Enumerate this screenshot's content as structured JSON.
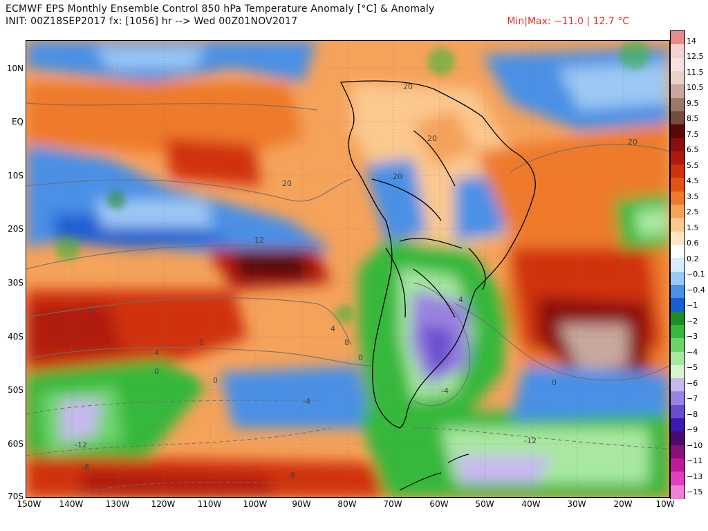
{
  "header": {
    "title_line1": "ECMWF EPS Monthly Ensemble Control 850 hPa Temperature Anomaly [°C] & Anomaly",
    "title_line2": "INIT: 00Z18SEP2017 fx: [1056] hr --> Wed 00Z01NOV2017",
    "minmax": "Min|Max: −11.0 | 12.7 °C"
  },
  "map": {
    "region": "South America / South Pacific / South Atlantic",
    "lat_labels": [
      "10N",
      "EQ",
      "10S",
      "20S",
      "30S",
      "40S",
      "50S",
      "60S",
      "70S"
    ],
    "lon_labels": [
      "150W",
      "140W",
      "130W",
      "120W",
      "110W",
      "100W",
      "90W",
      "80W",
      "70W",
      "60W",
      "50W",
      "40W",
      "30W",
      "20W",
      "10W"
    ],
    "contour_labels": [
      "20",
      "20",
      "20",
      "20",
      "20",
      "12",
      "8",
      "8",
      "4",
      "4",
      "4",
      "0",
      "0",
      "0",
      "0",
      "-4",
      "-4",
      "-8",
      "-8",
      "-12",
      "-12",
      "8"
    ]
  },
  "colorbar": {
    "labels": [
      "14",
      "12.5",
      "11.5",
      "10.5",
      "9.5",
      "8.5",
      "7.5",
      "6.5",
      "5.5",
      "4.5",
      "3.5",
      "2.5",
      "1.5",
      "0.6",
      "0.2",
      "−0.1",
      "−0.4",
      "−1",
      "−2",
      "−3",
      "−4",
      "−5",
      "−6",
      "−7",
      "−8",
      "−9",
      "−10",
      "−11",
      "−13",
      "−15"
    ],
    "colors": [
      "#e78c8c",
      "#f5d0d0",
      "#f4e2e2",
      "#e8d2cc",
      "#c8a89e",
      "#9c7868",
      "#744c40",
      "#5a0808",
      "#8a1010",
      "#b01a0c",
      "#d0320c",
      "#e25414",
      "#ee7a2c",
      "#f5a25a",
      "#fbc88e",
      "#fde6c4",
      "#ffffff",
      "#d8ecff",
      "#9cc8f4",
      "#4a90e6",
      "#1a5ed4",
      "#1e8c2a",
      "#36b83a",
      "#6ed46a",
      "#a8e8a0",
      "#d8f4d0",
      "#c8b8f0",
      "#9a82e0",
      "#6a4cd0",
      "#3c18b0",
      "#4a0a72",
      "#8a107a",
      "#c01a9a",
      "#e040c0",
      "#f080d8"
    ]
  }
}
